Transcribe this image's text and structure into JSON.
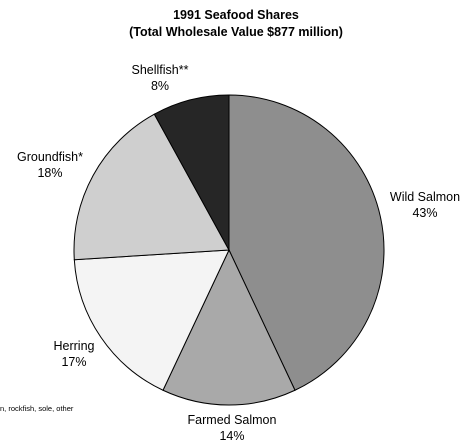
{
  "chart_data": {
    "type": "pie",
    "title": "1991 Seafood Shares",
    "subtitle": "(Total Wholesale Value $877 million)",
    "slices": [
      {
        "label": "Wild Salmon",
        "value": 43,
        "value_label": "43%",
        "color": "#8e8e8e"
      },
      {
        "label": "Farmed Salmon",
        "value": 14,
        "value_label": "14%",
        "color": "#a9a9a9"
      },
      {
        "label": "Herring",
        "value": 17,
        "value_label": "17%",
        "color": "#f4f4f4"
      },
      {
        "label": "Groundfish*",
        "value": 18,
        "value_label": "18%",
        "color": "#cfcfcf"
      },
      {
        "label": "Shellfish**",
        "value": 8,
        "value_label": "8%",
        "color": "#262626"
      }
    ],
    "start_angle": "12 o'clock",
    "direction": "clockwise",
    "edge_color": "#000000"
  },
  "footnote": "n,  rockfish, sole, other"
}
